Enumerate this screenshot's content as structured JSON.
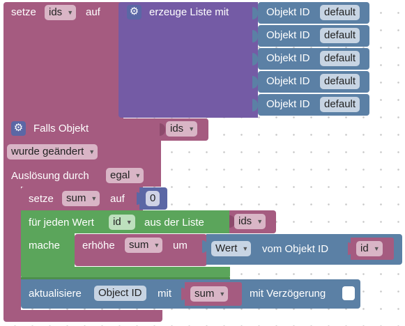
{
  "set_ids": {
    "setze": "setze",
    "variable": "ids",
    "auf": "auf"
  },
  "create_list": {
    "label": "erzeuge Liste mit",
    "items": [
      {
        "label": "Objekt ID",
        "value": "default"
      },
      {
        "label": "Objekt ID",
        "value": "default"
      },
      {
        "label": "Objekt ID",
        "value": "default"
      },
      {
        "label": "Objekt ID",
        "value": "default"
      },
      {
        "label": "Objekt ID",
        "value": "default"
      }
    ]
  },
  "trigger": {
    "label": "Falls Objekt",
    "object": "ids",
    "condition": "wurde geändert",
    "trigger_by_label": "Auslösung durch",
    "trigger_by_value": "egal"
  },
  "set_sum": {
    "setze": "setze",
    "variable": "sum",
    "auf": "auf",
    "value": "0"
  },
  "foreach": {
    "label_prefix": "für jeden Wert",
    "variable": "id",
    "label_suffix": "aus der Liste",
    "list": "ids",
    "do_label": "mache"
  },
  "increment": {
    "label": "erhöhe",
    "variable": "sum",
    "um": "um",
    "value_field": "Wert",
    "of_object": "vom Objekt ID",
    "object_var": "id"
  },
  "update": {
    "label": "aktualisiere",
    "object": "Object ID",
    "mit": "mit",
    "variable": "sum",
    "delay_label": "mit Verzögerung"
  },
  "colors": {
    "variable_block": "#a55b80",
    "list_block": "#745ba5",
    "object_block": "#5b80a5",
    "loop_block": "#5ba55b",
    "math_block": "#5b67a5"
  }
}
